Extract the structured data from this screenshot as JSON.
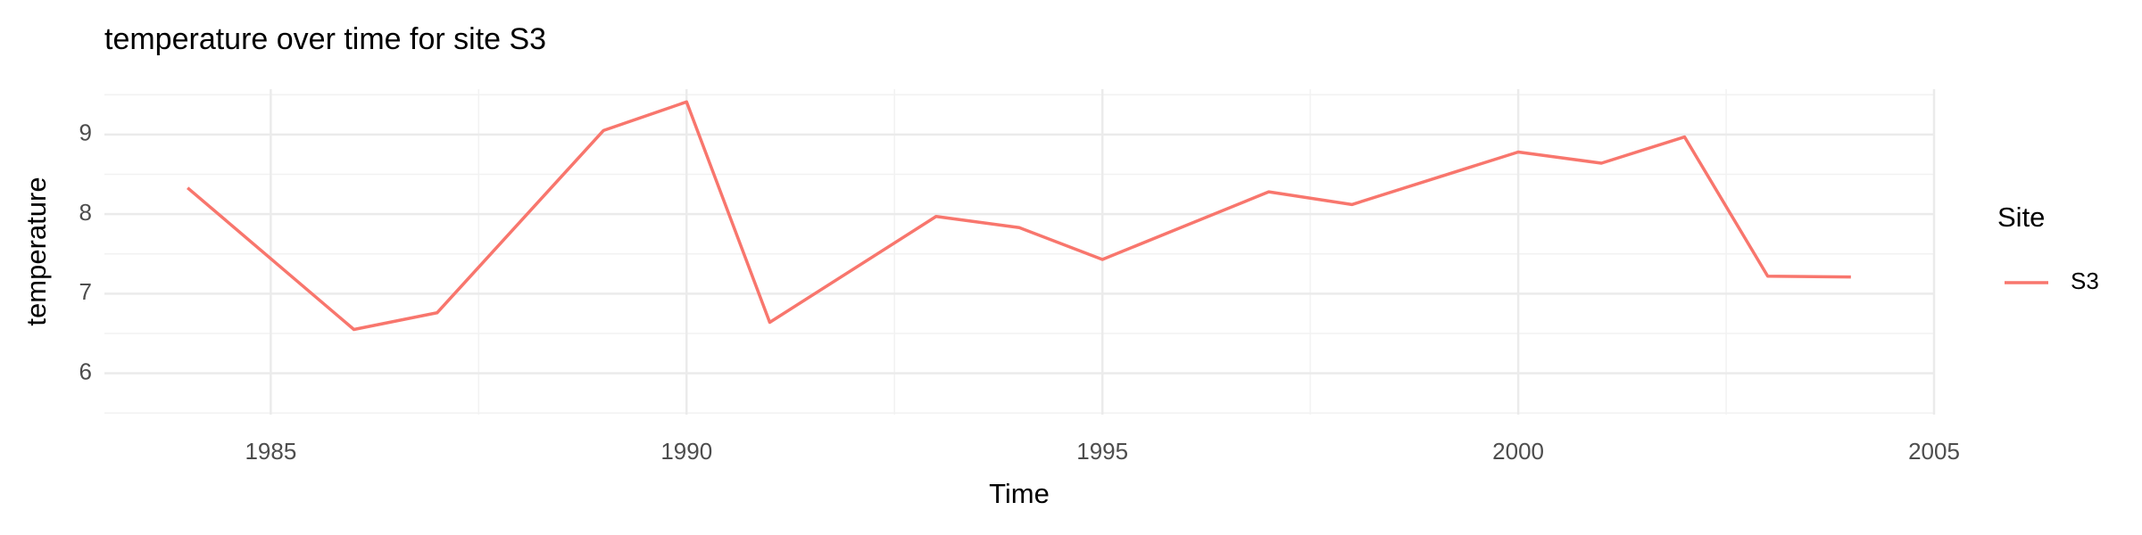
{
  "chart_data": {
    "type": "line",
    "title": "temperature over time for site S3",
    "x_label": "Time",
    "y_label": "temperature",
    "x": [
      1984,
      1986,
      1987,
      1989,
      1990,
      1991,
      1993,
      1994,
      1995,
      1997,
      1998,
      2000,
      2001,
      2002,
      2003,
      2004
    ],
    "series": [
      {
        "name": "S3",
        "color": "#F8766D",
        "values": [
          8.33,
          6.55,
          6.76,
          9.05,
          9.41,
          6.64,
          7.97,
          7.83,
          7.43,
          8.28,
          8.12,
          8.78,
          8.64,
          8.97,
          7.22,
          7.21
        ]
      }
    ],
    "legend_title": "Site",
    "legend": "right",
    "xlim": [
      1983,
      2005
    ],
    "xticks": [
      1985,
      1990,
      1995,
      2000,
      2005
    ],
    "ylim": [
      5.48,
      9.57
    ],
    "yticks": [
      6,
      7,
      8,
      9
    ],
    "grid": true
  }
}
